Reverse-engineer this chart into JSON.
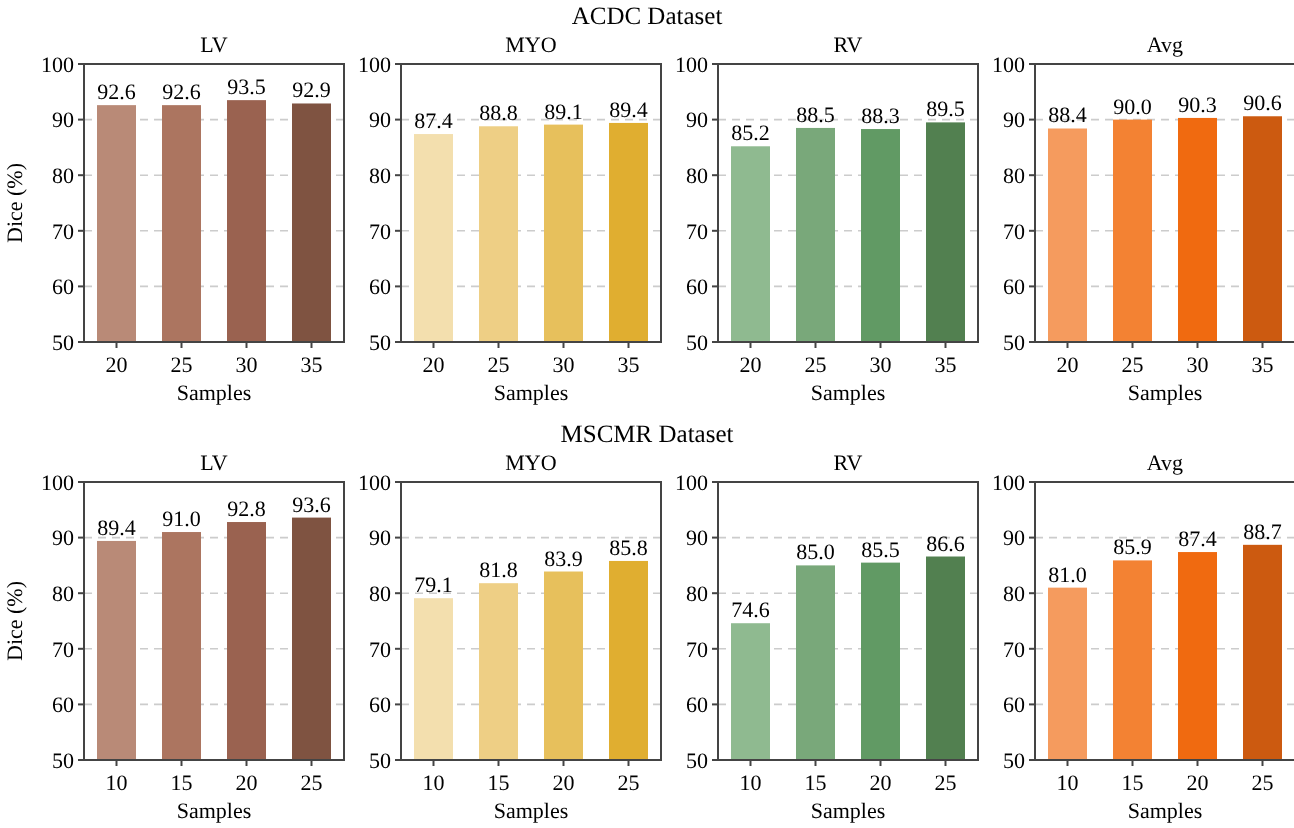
{
  "chart_data": [
    {
      "type": "bar",
      "title": "LV",
      "annotations": [
        "ACDC Dataset"
      ],
      "xlabel": "Samples",
      "ylabel": "Dice (%)",
      "categories": [
        "20",
        "25",
        "30",
        "35"
      ],
      "values": [
        92.6,
        92.6,
        93.5,
        92.9
      ],
      "value_labels": [
        "92.6",
        "92.6",
        "93.5",
        "92.9"
      ],
      "colors": [
        "#b98a77",
        "#ac7560",
        "#9a6250",
        "#7f5341"
      ],
      "ylim": [
        50,
        100
      ],
      "yticks": [
        50,
        60,
        70,
        80,
        90,
        100
      ],
      "grid": "y"
    },
    {
      "type": "bar",
      "title": "MYO",
      "xlabel": "Samples",
      "categories": [
        "20",
        "25",
        "30",
        "35"
      ],
      "values": [
        87.4,
        88.8,
        89.1,
        89.4
      ],
      "value_labels": [
        "87.4",
        "88.8",
        "89.1",
        "89.4"
      ],
      "colors": [
        "#f3dfae",
        "#eecf85",
        "#e7c05c",
        "#e0ae30"
      ],
      "ylim": [
        50,
        100
      ],
      "yticks": [
        50,
        60,
        70,
        80,
        90,
        100
      ],
      "grid": "y"
    },
    {
      "type": "bar",
      "title": "RV",
      "xlabel": "Samples",
      "categories": [
        "20",
        "25",
        "30",
        "35"
      ],
      "values": [
        85.2,
        88.5,
        88.3,
        89.5
      ],
      "value_labels": [
        "85.2",
        "88.5",
        "88.3",
        "89.5"
      ],
      "colors": [
        "#8fba90",
        "#79a87a",
        "#619a64",
        "#528050"
      ],
      "ylim": [
        50,
        100
      ],
      "yticks": [
        50,
        60,
        70,
        80,
        90,
        100
      ],
      "grid": "y"
    },
    {
      "type": "bar",
      "title": "Avg",
      "xlabel": "Samples",
      "categories": [
        "20",
        "25",
        "30",
        "35"
      ],
      "values": [
        88.4,
        90.0,
        90.3,
        90.6
      ],
      "value_labels": [
        "88.4",
        "90.0",
        "90.3",
        "90.6"
      ],
      "colors": [
        "#f59b5e",
        "#f38233",
        "#f06a10",
        "#cc5a10"
      ],
      "ylim": [
        50,
        100
      ],
      "yticks": [
        50,
        60,
        70,
        80,
        90,
        100
      ],
      "grid": "y"
    },
    {
      "type": "bar",
      "title": "LV",
      "annotations": [
        "MSCMR Dataset"
      ],
      "xlabel": "Samples",
      "ylabel": "Dice (%)",
      "categories": [
        "10",
        "15",
        "20",
        "25"
      ],
      "values": [
        89.4,
        91.0,
        92.8,
        93.6
      ],
      "value_labels": [
        "89.4",
        "91.0",
        "92.8",
        "93.6"
      ],
      "colors": [
        "#b98a77",
        "#ac7560",
        "#9a6250",
        "#7f5341"
      ],
      "ylim": [
        50,
        100
      ],
      "yticks": [
        50,
        60,
        70,
        80,
        90,
        100
      ],
      "grid": "y"
    },
    {
      "type": "bar",
      "title": "MYO",
      "xlabel": "Samples",
      "categories": [
        "10",
        "15",
        "20",
        "25"
      ],
      "values": [
        79.1,
        81.8,
        83.9,
        85.8
      ],
      "value_labels": [
        "79.1",
        "81.8",
        "83.9",
        "85.8"
      ],
      "colors": [
        "#f3dfae",
        "#eecf85",
        "#e7c05c",
        "#e0ae30"
      ],
      "ylim": [
        50,
        100
      ],
      "yticks": [
        50,
        60,
        70,
        80,
        90,
        100
      ],
      "grid": "y"
    },
    {
      "type": "bar",
      "title": "RV",
      "xlabel": "Samples",
      "categories": [
        "10",
        "15",
        "20",
        "25"
      ],
      "values": [
        74.6,
        85.0,
        85.5,
        86.6
      ],
      "value_labels": [
        "74.6",
        "85.0",
        "85.5",
        "86.6"
      ],
      "colors": [
        "#8fba90",
        "#79a87a",
        "#619a64",
        "#528050"
      ],
      "ylim": [
        50,
        100
      ],
      "yticks": [
        50,
        60,
        70,
        80,
        90,
        100
      ],
      "grid": "y"
    },
    {
      "type": "bar",
      "title": "Avg",
      "xlabel": "Samples",
      "categories": [
        "10",
        "15",
        "20",
        "25"
      ],
      "values": [
        81.0,
        85.9,
        87.4,
        88.7
      ],
      "value_labels": [
        "81.0",
        "85.9",
        "87.4",
        "88.7"
      ],
      "colors": [
        "#f59b5e",
        "#f38233",
        "#f06a10",
        "#cc5a10"
      ],
      "ylim": [
        50,
        100
      ],
      "yticks": [
        50,
        60,
        70,
        80,
        90,
        100
      ],
      "grid": "y"
    }
  ]
}
